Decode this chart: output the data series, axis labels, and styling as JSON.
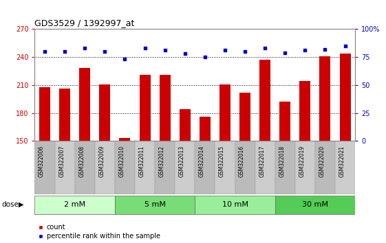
{
  "title": "GDS3529 / 1392997_at",
  "categories": [
    "GSM322006",
    "GSM322007",
    "GSM322008",
    "GSM322009",
    "GSM322010",
    "GSM322011",
    "GSM322012",
    "GSM322013",
    "GSM322014",
    "GSM322015",
    "GSM322016",
    "GSM322017",
    "GSM322018",
    "GSM322019",
    "GSM322020",
    "GSM322021"
  ],
  "bar_values": [
    208,
    206,
    228,
    211,
    153,
    221,
    221,
    184,
    176,
    211,
    202,
    237,
    192,
    214,
    241,
    244
  ],
  "scatter_values": [
    80,
    80,
    83,
    80,
    73,
    83,
    81,
    78,
    75,
    81,
    80,
    83,
    79,
    81,
    82,
    85
  ],
  "bar_color": "#cc0000",
  "scatter_color": "#0000cc",
  "ylim_left": [
    150,
    270
  ],
  "ylim_right": [
    0,
    100
  ],
  "yticks_left": [
    150,
    180,
    210,
    240,
    270
  ],
  "yticks_right": [
    0,
    25,
    50,
    75,
    100
  ],
  "ytick_labels_right": [
    "0",
    "25",
    "50",
    "75",
    "100%"
  ],
  "dose_groups": [
    {
      "label": "2 mM",
      "indices": [
        0,
        3
      ],
      "color": "#ccffcc"
    },
    {
      "label": "5 mM",
      "indices": [
        4,
        7
      ],
      "color": "#77dd77"
    },
    {
      "label": "10 mM",
      "indices": [
        8,
        11
      ],
      "color": "#99ee99"
    },
    {
      "label": "30 mM",
      "indices": [
        12,
        15
      ],
      "color": "#55cc55"
    }
  ],
  "dose_label": "dose",
  "legend_count_label": "count",
  "legend_percentile_label": "percentile rank within the sample",
  "background_color": "#ffffff",
  "plot_bg_color": "#ffffff",
  "xtick_bg_color": "#bbbbbb",
  "gridline_color": "#000000",
  "bar_width": 0.55
}
